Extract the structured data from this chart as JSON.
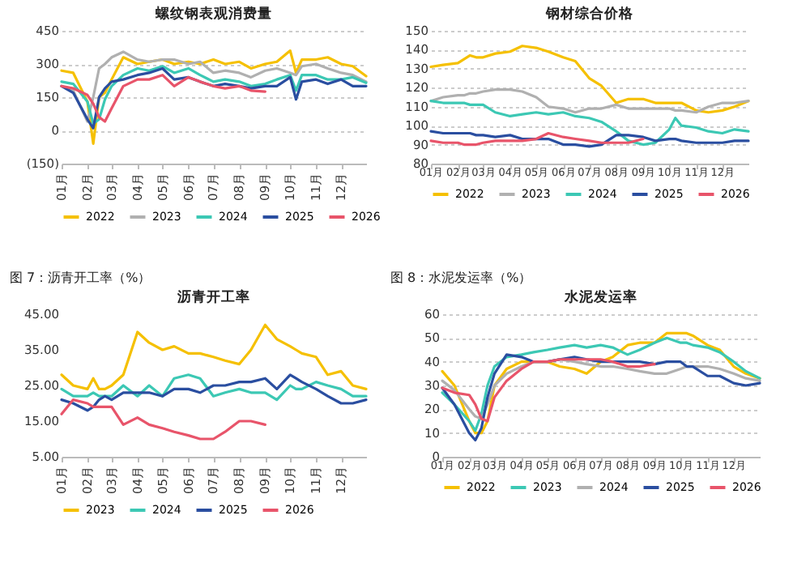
{
  "chart_data": [
    {
      "type": "line",
      "title": "螺纹钢表观消费量",
      "x": [
        "--01-01",
        "--01-15",
        "--02-01",
        "--02-08",
        "--02-15",
        "--02-22",
        "--03-01",
        "--03-15",
        "--04-01",
        "--04-15",
        "--05-01",
        "--05-15",
        "--06-01",
        "--06-15",
        "--07-01",
        "--07-15",
        "--08-01",
        "--08-15",
        "--09-01",
        "--09-15",
        "--10-01",
        "--10-08",
        "--10-15",
        "--11-01",
        "--11-15",
        "--12-01",
        "--12-15",
        "--12-31"
      ],
      "xlim": [
        "--01-01",
        "--12-31"
      ],
      "xticks": [
        {
          "value": "--01-01",
          "label": "01月"
        },
        {
          "value": "--02-01",
          "label": "02月"
        },
        {
          "value": "--03-01",
          "label": "03月"
        },
        {
          "value": "--04-01",
          "label": "04月"
        },
        {
          "value": "--05-01",
          "label": "05月"
        },
        {
          "value": "--06-01",
          "label": "06月"
        },
        {
          "value": "--07-01",
          "label": "07月"
        },
        {
          "value": "--08-01",
          "label": "08月"
        },
        {
          "value": "--09-01",
          "label": "09月"
        },
        {
          "value": "--10-01",
          "label": "10月"
        },
        {
          "value": "--11-01",
          "label": "11月"
        },
        {
          "value": "--12-01",
          "label": "12月"
        }
      ],
      "ylim": [
        -150,
        450
      ],
      "yticks": [
        {
          "value": -150,
          "label": "(150)"
        },
        0,
        150,
        300,
        450
      ],
      "grid": "y",
      "legend": "bottom",
      "series": [
        {
          "name": "2022",
          "color": "#f5c000",
          "values": [
            270,
            260,
            130,
            -60,
            150,
            170,
            230,
            330,
            300,
            310,
            320,
            300,
            310,
            300,
            320,
            300,
            310,
            280,
            300,
            310,
            360,
            260,
            320,
            320,
            330,
            300,
            290,
            245
          ]
        },
        {
          "name": "2023",
          "color": "#b0b0b0",
          "values": [
            200,
            180,
            40,
            150,
            280,
            300,
            330,
            355,
            320,
            310,
            320,
            320,
            300,
            310,
            260,
            270,
            260,
            240,
            270,
            280,
            260,
            250,
            290,
            300,
            280,
            260,
            250,
            220
          ]
        },
        {
          "name": "2024",
          "color": "#3cc8b4",
          "values": [
            220,
            210,
            130,
            30,
            50,
            140,
            200,
            250,
            280,
            270,
            290,
            260,
            280,
            250,
            220,
            230,
            220,
            200,
            210,
            230,
            250,
            180,
            250,
            250,
            230,
            230,
            240,
            215
          ]
        },
        {
          "name": "2025",
          "color": "#2a4ea0",
          "values": [
            200,
            170,
            50,
            10,
            150,
            190,
            220,
            230,
            250,
            260,
            280,
            230,
            240,
            220,
            200,
            210,
            200,
            190,
            200,
            200,
            240,
            140,
            220,
            230,
            210,
            230,
            200,
            200
          ]
        },
        {
          "name": "2026",
          "color": "#e8546a",
          "values": [
            200,
            190,
            160,
            120,
            60,
            40,
            100,
            200,
            230,
            230,
            250,
            200,
            240,
            220,
            200,
            190,
            200,
            180,
            175,
            null,
            null,
            null,
            null,
            null,
            null,
            null,
            null,
            null
          ]
        }
      ]
    },
    {
      "type": "line",
      "title": "钢材综合价格",
      "x": [
        "--01-01",
        "--01-15",
        "--02-01",
        "--02-08",
        "--02-15",
        "--02-22",
        "--03-01",
        "--03-15",
        "--04-01",
        "--04-15",
        "--05-01",
        "--05-15",
        "--06-01",
        "--06-15",
        "--07-01",
        "--07-15",
        "--08-01",
        "--08-15",
        "--09-01",
        "--09-15",
        "--10-01",
        "--10-08",
        "--10-15",
        "--11-01",
        "--11-15",
        "--12-01",
        "--12-15",
        "--12-31"
      ],
      "xlim": [
        "--01-01",
        "--12-31"
      ],
      "xticks": [
        {
          "value": "--01-01",
          "label": "01月"
        },
        {
          "value": "--02-01",
          "label": "02月"
        },
        {
          "value": "--03-01",
          "label": "03月"
        },
        {
          "value": "--04-01",
          "label": "04月"
        },
        {
          "value": "--05-01",
          "label": "05月"
        },
        {
          "value": "--06-01",
          "label": "06月"
        },
        {
          "value": "--07-01",
          "label": "07月"
        },
        {
          "value": "--08-01",
          "label": "08月"
        },
        {
          "value": "--09-01",
          "label": "09月"
        },
        {
          "value": "--10-01",
          "label": "10月"
        },
        {
          "value": "--11-01",
          "label": "11月"
        },
        {
          "value": "--12-01",
          "label": "12月"
        }
      ],
      "ylim": [
        80,
        150
      ],
      "yticks": [
        80,
        90,
        100,
        110,
        120,
        130,
        140,
        150
      ],
      "grid": "y",
      "legend": "bottom",
      "series": [
        {
          "name": "2022",
          "color": "#f5c000",
          "values": [
            131,
            132,
            133,
            135,
            137,
            136,
            136,
            138,
            139,
            142,
            141,
            139,
            136,
            134,
            125,
            121,
            112,
            114,
            114,
            112,
            112,
            112,
            112,
            108,
            107,
            108,
            110,
            113
          ]
        },
        {
          "name": "2023",
          "color": "#b0b0b0",
          "values": [
            113,
            115,
            116,
            116,
            117,
            117,
            118,
            119,
            119,
            118,
            115,
            110,
            109,
            107,
            109,
            109,
            111,
            109,
            109,
            109,
            109,
            108,
            108,
            107,
            110,
            112,
            112,
            113
          ]
        },
        {
          "name": "2024",
          "color": "#3cc8b4",
          "values": [
            113,
            112,
            112,
            112,
            111,
            111,
            111,
            107,
            105,
            106,
            107,
            106,
            107,
            105,
            104,
            102,
            97,
            92,
            90,
            91,
            98,
            104,
            100,
            99,
            97,
            96,
            98,
            97
          ]
        },
        {
          "name": "2025",
          "color": "#2a4ea0",
          "values": [
            97,
            96,
            96,
            96,
            96,
            95,
            95,
            94,
            95,
            93,
            93,
            93,
            90,
            90,
            89,
            90,
            95,
            95,
            94,
            92,
            93,
            93,
            92,
            91,
            91,
            91,
            92,
            92
          ]
        },
        {
          "name": "2026",
          "color": "#e8546a",
          "values": [
            92,
            91,
            91,
            90,
            90,
            90,
            91,
            92,
            92,
            92,
            93,
            96,
            94,
            93,
            92,
            91,
            91,
            91,
            93,
            null,
            null,
            null,
            null,
            null,
            null,
            null,
            null,
            null
          ]
        }
      ]
    },
    {
      "type": "line",
      "title": "沥青开工率",
      "annotations": [
        "图 7：沥青开工率（%）"
      ],
      "x": [
        "--01-01",
        "--01-15",
        "--02-01",
        "--02-08",
        "--02-15",
        "--02-22",
        "--03-01",
        "--03-15",
        "--04-01",
        "--04-15",
        "--05-01",
        "--05-15",
        "--06-01",
        "--06-15",
        "--07-01",
        "--07-15",
        "--08-01",
        "--08-15",
        "--09-01",
        "--09-15",
        "--10-01",
        "--10-08",
        "--10-15",
        "--11-01",
        "--11-15",
        "--12-01",
        "--12-15",
        "--12-31"
      ],
      "xlim": [
        "--01-01",
        "--12-31"
      ],
      "xticks": [
        {
          "value": "--01-01",
          "label": "01月"
        },
        {
          "value": "--02-01",
          "label": "02月"
        },
        {
          "value": "--03-01",
          "label": "03月"
        },
        {
          "value": "--04-01",
          "label": "04月"
        },
        {
          "value": "--05-01",
          "label": "05月"
        },
        {
          "value": "--06-01",
          "label": "06月"
        },
        {
          "value": "--07-01",
          "label": "07月"
        },
        {
          "value": "--08-01",
          "label": "08月"
        },
        {
          "value": "--09-01",
          "label": "09月"
        },
        {
          "value": "--10-01",
          "label": "10月"
        },
        {
          "value": "--11-01",
          "label": "11月"
        },
        {
          "value": "--12-01",
          "label": "12月"
        }
      ],
      "ylim": [
        5,
        45
      ],
      "yticks": [
        {
          "value": 5,
          "label": "5.00"
        },
        {
          "value": 15,
          "label": "15.00"
        },
        {
          "value": 25,
          "label": "25.00"
        },
        {
          "value": 35,
          "label": "35.00"
        },
        {
          "value": 45,
          "label": "45.00"
        }
      ],
      "legend": "bottom",
      "series": [
        {
          "name": "2023",
          "color": "#f5c000",
          "values": [
            28,
            25,
            24,
            27,
            24,
            24,
            25,
            28,
            40,
            37,
            35,
            36,
            34,
            34,
            33,
            32,
            31,
            35,
            42,
            38,
            36,
            35,
            34,
            33,
            28,
            29,
            25,
            24
          ]
        },
        {
          "name": "2024",
          "color": "#3cc8b4",
          "values": [
            24,
            22,
            22,
            23,
            22,
            22,
            22,
            25,
            22,
            25,
            22,
            27,
            28,
            27,
            22,
            23,
            24,
            23,
            23,
            21,
            25,
            24,
            24,
            26,
            25,
            24,
            22,
            22
          ]
        },
        {
          "name": "2025",
          "color": "#2a4ea0",
          "values": [
            21,
            20,
            18,
            19,
            21,
            22,
            21,
            23,
            23,
            23,
            22,
            24,
            24,
            23,
            25,
            25,
            26,
            26,
            27,
            24,
            28,
            27,
            26,
            24,
            22,
            20,
            20,
            21
          ]
        },
        {
          "name": "2026",
          "color": "#e8546a",
          "values": [
            17,
            21,
            20,
            19,
            19,
            19,
            19,
            14,
            16,
            14,
            13,
            12,
            11,
            10,
            10,
            12,
            15,
            15,
            14,
            null,
            null,
            null,
            null,
            null,
            null,
            null,
            null,
            null
          ]
        }
      ]
    },
    {
      "type": "line",
      "title": "水泥发运率",
      "annotations": [
        "图 8：水泥发运率（%）"
      ],
      "x": [
        "--01-01",
        "--01-15",
        "--02-01",
        "--02-08",
        "--02-15",
        "--02-22",
        "--03-01",
        "--03-15",
        "--04-01",
        "--04-15",
        "--05-01",
        "--05-15",
        "--06-01",
        "--06-15",
        "--07-01",
        "--07-15",
        "--08-01",
        "--08-15",
        "--09-01",
        "--09-15",
        "--10-01",
        "--10-08",
        "--10-15",
        "--11-01",
        "--11-15",
        "--12-01",
        "--12-15",
        "--12-31"
      ],
      "xlim": [
        "--01-01",
        "--12-31"
      ],
      "xticks": [
        {
          "value": "--01-01",
          "label": "01月"
        },
        {
          "value": "--02-01",
          "label": "02月"
        },
        {
          "value": "--03-01",
          "label": "03月"
        },
        {
          "value": "--04-01",
          "label": "04月"
        },
        {
          "value": "--05-01",
          "label": "05月"
        },
        {
          "value": "--06-01",
          "label": "06月"
        },
        {
          "value": "--07-01",
          "label": "07月"
        },
        {
          "value": "--08-01",
          "label": "08月"
        },
        {
          "value": "--09-01",
          "label": "09月"
        },
        {
          "value": "--10-01",
          "label": "10月"
        },
        {
          "value": "--11-01",
          "label": "11月"
        },
        {
          "value": "--12-01",
          "label": "12月"
        }
      ],
      "ylim": [
        0,
        60
      ],
      "yticks": [
        0,
        10,
        20,
        30,
        40,
        50,
        60
      ],
      "grid": "y",
      "legend": "bottom",
      "series": [
        {
          "name": "2022",
          "color": "#f5c000",
          "values": [
            36,
            30,
            15,
            10,
            10,
            15,
            30,
            37,
            40,
            40,
            40,
            38,
            37,
            35,
            40,
            42,
            47,
            48,
            48,
            52,
            52,
            52,
            51,
            47,
            45,
            38,
            35,
            33
          ]
        },
        {
          "name": "2023",
          "color": "#3cc8b4",
          "values": [
            27,
            22,
            15,
            11,
            18,
            30,
            38,
            42,
            43,
            44,
            45,
            46,
            47,
            46,
            47,
            46,
            43,
            45,
            48,
            50,
            48,
            48,
            47,
            46,
            44,
            40,
            36,
            33
          ]
        },
        {
          "name": "2024",
          "color": "#b0b0b0",
          "values": [
            32,
            28,
            20,
            17,
            16,
            22,
            30,
            35,
            38,
            40,
            40,
            41,
            40,
            39,
            38,
            38,
            37,
            36,
            35,
            35,
            37,
            38,
            38,
            38,
            37,
            35,
            33,
            32
          ]
        },
        {
          "name": "2025",
          "color": "#2a4ea0",
          "values": [
            29,
            22,
            10,
            7,
            12,
            25,
            35,
            43,
            42,
            40,
            40,
            41,
            42,
            41,
            40,
            40,
            40,
            40,
            39,
            40,
            40,
            38,
            38,
            34,
            34,
            31,
            30,
            31
          ]
        },
        {
          "name": "2026",
          "color": "#e8546a",
          "values": [
            29,
            27,
            26,
            22,
            16,
            15,
            25,
            32,
            37,
            40,
            40,
            41,
            41,
            41,
            41,
            40,
            38,
            38,
            39,
            null,
            null,
            null,
            null,
            null,
            null,
            null,
            null,
            null
          ]
        }
      ]
    }
  ]
}
